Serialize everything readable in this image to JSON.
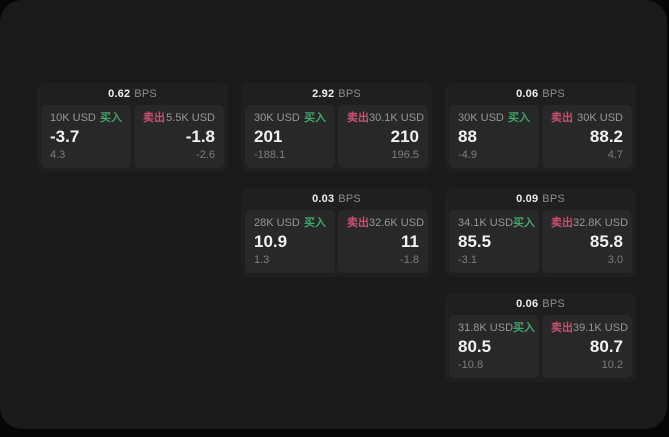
{
  "labels": {
    "buy": "买入",
    "sell": "卖出",
    "bps_suffix": "BPS"
  },
  "colors": {
    "buy_green": "#3fa56b",
    "sell_rose": "#c9506f",
    "window_bg": "#1a1a1a",
    "card_bg": "#1f1f1f",
    "panel_bg": "#282828"
  },
  "cards": [
    {
      "bps": "0.62",
      "buy": {
        "notional": "10K USD",
        "price": "-3.7",
        "delta": "4.3"
      },
      "sell": {
        "notional": "5.5K USD",
        "price": "-1.8",
        "delta": "-2.6"
      }
    },
    {
      "bps": "2.92",
      "buy": {
        "notional": "30K USD",
        "price": "201",
        "delta": "-188.1"
      },
      "sell": {
        "notional": "30.1K USD",
        "price": "210",
        "delta": "196.5"
      }
    },
    {
      "bps": "0.06",
      "buy": {
        "notional": "30K USD",
        "price": "88",
        "delta": "-4.9"
      },
      "sell": {
        "notional": "30K USD",
        "price": "88.2",
        "delta": "4.7"
      }
    },
    {
      "bps": "0.03",
      "buy": {
        "notional": "28K USD",
        "price": "10.9",
        "delta": "1.3"
      },
      "sell": {
        "notional": "32.6K USD",
        "price": "11",
        "delta": "-1.8"
      }
    },
    {
      "bps": "0.09",
      "buy": {
        "notional": "34.1K USD",
        "price": "85.5",
        "delta": "-3.1"
      },
      "sell": {
        "notional": "32.8K USD",
        "price": "85.8",
        "delta": "3.0"
      }
    },
    {
      "bps": "0.06",
      "buy": {
        "notional": "31.8K USD",
        "price": "80.5",
        "delta": "-10.8"
      },
      "sell": {
        "notional": "39.1K USD",
        "price": "80.7",
        "delta": "10.2"
      }
    }
  ]
}
